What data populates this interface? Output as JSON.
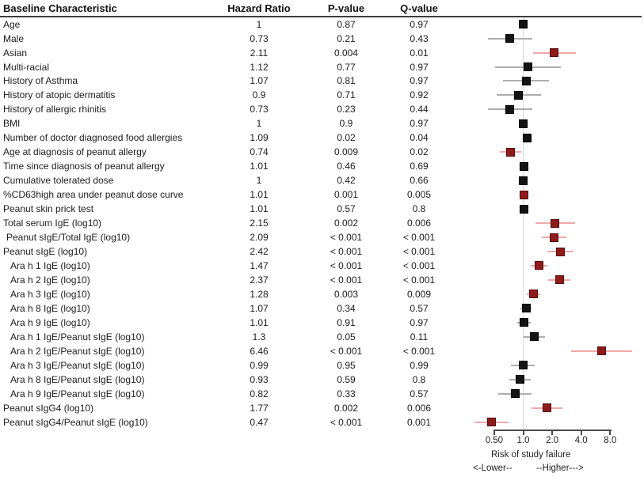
{
  "figure": {
    "header": {
      "characteristic": "Baseline Characteristic",
      "hazard_ratio": "Hazard Ratio",
      "p_value": "P-value",
      "q_value": "Q-value"
    },
    "axis": {
      "tick_labels": [
        "0.50",
        "1.0",
        "2.0",
        "4.0",
        "8.0"
      ],
      "tick_values": [
        0.5,
        1,
        2,
        4,
        8
      ],
      "xlabel": "Risk of study failure",
      "lower_label": "<-Lower--",
      "higher_label": "--Higher--->"
    },
    "colors": {
      "significant_marker": "#8E1B1B",
      "significant_marker_border": "#550D0D",
      "significant_ci": "#F0A9A9",
      "marker": "#141414",
      "marker_border": "#000000",
      "ci_line": "#ADADAD",
      "reference_line": "#D8D8D8",
      "axis": "#4A4A4A"
    }
  },
  "chart_data": {
    "type": "forest",
    "title": "",
    "xlabel": "Risk of study failure",
    "x_scale": "log2",
    "x_ticks": [
      0.5,
      1.0,
      2.0,
      4.0,
      8.0
    ],
    "x_tick_labels": [
      "0.50",
      "1.0",
      "2.0",
      "4.0",
      "8.0"
    ],
    "reference_value": 1.0,
    "columns": [
      "Baseline Characteristic",
      "Hazard Ratio",
      "P-value",
      "Q-value"
    ],
    "rows": [
      {
        "label": "Age",
        "indent": 0,
        "hr": 1,
        "hr_text": "1",
        "ci": [
          0.97,
          1.03
        ],
        "p": "0.87",
        "q": "0.97",
        "significant": false
      },
      {
        "label": "Male",
        "indent": 0,
        "hr": 0.73,
        "hr_text": "0.73",
        "ci": [
          0.43,
          1.25
        ],
        "p": "0.21",
        "q": "0.43",
        "significant": false
      },
      {
        "label": "Asian",
        "indent": 0,
        "hr": 2.11,
        "hr_text": "2.11",
        "ci": [
          1.26,
          3.54
        ],
        "p": "0.004",
        "q": "0.01",
        "significant": true
      },
      {
        "label": "Multi-racial",
        "indent": 0,
        "hr": 1.12,
        "hr_text": "1.12",
        "ci": [
          0.51,
          2.44
        ],
        "p": "0.77",
        "q": "0.97",
        "significant": false
      },
      {
        "label": "History of Asthma",
        "indent": 0,
        "hr": 1.07,
        "hr_text": "1.07",
        "ci": [
          0.62,
          1.84
        ],
        "p": "0.81",
        "q": "0.97",
        "significant": false
      },
      {
        "label": "History of atopic dermatitis",
        "indent": 0,
        "hr": 0.9,
        "hr_text": "0.9",
        "ci": [
          0.53,
          1.54
        ],
        "p": "0.71",
        "q": "0.92",
        "significant": false
      },
      {
        "label": "History of allergic rhinitis",
        "indent": 0,
        "hr": 0.73,
        "hr_text": "0.73",
        "ci": [
          0.43,
          1.25
        ],
        "p": "0.23",
        "q": "0.44",
        "significant": false
      },
      {
        "label": "BMI",
        "indent": 0,
        "hr": 1,
        "hr_text": "1",
        "ci": [
          0.96,
          1.04
        ],
        "p": "0.9",
        "q": "0.97",
        "significant": false
      },
      {
        "label": "Number of doctor diagnosed food allergies",
        "indent": 0,
        "hr": 1.09,
        "hr_text": "1.09",
        "ci": [
          1.01,
          1.17
        ],
        "p": "0.02",
        "q": "0.04",
        "significant": false
      },
      {
        "label": "Age at diagnosis of peanut allergy",
        "indent": 0,
        "hr": 0.74,
        "hr_text": "0.74",
        "ci": [
          0.57,
          0.96
        ],
        "p": "0.009",
        "q": "0.02",
        "significant": true
      },
      {
        "label": "Time since diagnosis of peanut allergy",
        "indent": 0,
        "hr": 1.01,
        "hr_text": "1.01",
        "ci": [
          0.98,
          1.04
        ],
        "p": "0.46",
        "q": "0.69",
        "significant": false
      },
      {
        "label": "Cumulative tolerated dose",
        "indent": 0,
        "hr": 1,
        "hr_text": "1",
        "ci": [
          0.99,
          1.01
        ],
        "p": "0.42",
        "q": "0.66",
        "significant": false
      },
      {
        "label": "%CD63high area under peanut dose curve",
        "indent": 0,
        "hr": 1.01,
        "hr_text": "1.01",
        "ci": [
          1.0,
          1.02
        ],
        "p": "0.001",
        "q": "0.005",
        "significant": true
      },
      {
        "label": "Peanut skin prick test",
        "indent": 0,
        "hr": 1.01,
        "hr_text": "1.01",
        "ci": [
          0.98,
          1.04
        ],
        "p": "0.57",
        "q": "0.8",
        "significant": false
      },
      {
        "label": "Total serum IgE (log10)",
        "indent": 0,
        "hr": 2.15,
        "hr_text": "2.15",
        "ci": [
          1.33,
          3.48
        ],
        "p": "0.002",
        "q": "0.006",
        "significant": true
      },
      {
        "label": "Peanut sIgE/Total IgE (log10)",
        "indent": 1,
        "hr": 2.09,
        "hr_text": "2.09",
        "ci": [
          1.55,
          2.82
        ],
        "p": "< 0.001",
        "q": "< 0.001",
        "significant": true
      },
      {
        "label": "Peanut sIgE (log10)",
        "indent": 0,
        "hr": 2.42,
        "hr_text": "2.42",
        "ci": [
          1.77,
          3.31
        ],
        "p": "< 0.001",
        "q": "< 0.001",
        "significant": true
      },
      {
        "label": "Ara h 1 IgE (log10)",
        "indent": 2,
        "hr": 1.47,
        "hr_text": "1.47",
        "ci": [
          1.2,
          1.8
        ],
        "p": "< 0.001",
        "q": "< 0.001",
        "significant": true
      },
      {
        "label": "Ara h 2 IgE (log10)",
        "indent": 2,
        "hr": 2.37,
        "hr_text": "2.37",
        "ci": [
          1.83,
          3.07
        ],
        "p": "< 0.001",
        "q": "< 0.001",
        "significant": true
      },
      {
        "label": "Ara h 3 IgE (log10)",
        "indent": 2,
        "hr": 1.28,
        "hr_text": "1.28",
        "ci": [
          1.09,
          1.5
        ],
        "p": "0.003",
        "q": "0.009",
        "significant": true
      },
      {
        "label": "Ara h 8 IgE (log10)",
        "indent": 2,
        "hr": 1.07,
        "hr_text": "1.07",
        "ci": [
          0.93,
          1.23
        ],
        "p": "0.34",
        "q": "0.57",
        "significant": false
      },
      {
        "label": "Ara h 9 IgE (log10)",
        "indent": 2,
        "hr": 1.01,
        "hr_text": "1.01",
        "ci": [
          0.86,
          1.19
        ],
        "p": "0.91",
        "q": "0.97",
        "significant": false
      },
      {
        "label": "Ara h 1 IgE/Peanut sIgE (log10)",
        "indent": 2,
        "hr": 1.3,
        "hr_text": "1.3",
        "ci": [
          1.0,
          1.69
        ],
        "p": "0.05",
        "q": "0.11",
        "significant": false
      },
      {
        "label": "Ara h 2 IgE/Peanut sIgE (log10)",
        "indent": 2,
        "hr": 6.46,
        "hr_text": "6.46",
        "ci": [
          3.12,
          13.4
        ],
        "p": "< 0.001",
        "q": "< 0.001",
        "significant": true
      },
      {
        "label": "Ara h 3 IgE/Peanut sIgE (log10)",
        "indent": 2,
        "hr": 0.99,
        "hr_text": "0.99",
        "ci": [
          0.75,
          1.31
        ],
        "p": "0.95",
        "q": "0.99",
        "significant": false
      },
      {
        "label": "Ara h 8 IgE/Peanut sIgE (log10)",
        "indent": 2,
        "hr": 0.93,
        "hr_text": "0.93",
        "ci": [
          0.72,
          1.19
        ],
        "p": "0.59",
        "q": "0.8",
        "significant": false
      },
      {
        "label": "Ara h 9 IgE/Peanut sIgE (log10)",
        "indent": 2,
        "hr": 0.82,
        "hr_text": "0.82",
        "ci": [
          0.55,
          1.22
        ],
        "p": "0.33",
        "q": "0.57",
        "significant": false
      },
      {
        "label": "Peanut sIgG4 (log10)",
        "indent": 0,
        "hr": 1.77,
        "hr_text": "1.77",
        "ci": [
          1.23,
          2.55
        ],
        "p": "0.002",
        "q": "0.006",
        "significant": true
      },
      {
        "label": "Peanut sIgG4/Peanut sIgE (log10)",
        "indent": 0,
        "hr": 0.47,
        "hr_text": "0.47",
        "ci": [
          0.31,
          0.71
        ],
        "p": "< 0.001",
        "q": "0.001",
        "significant": true
      }
    ]
  }
}
